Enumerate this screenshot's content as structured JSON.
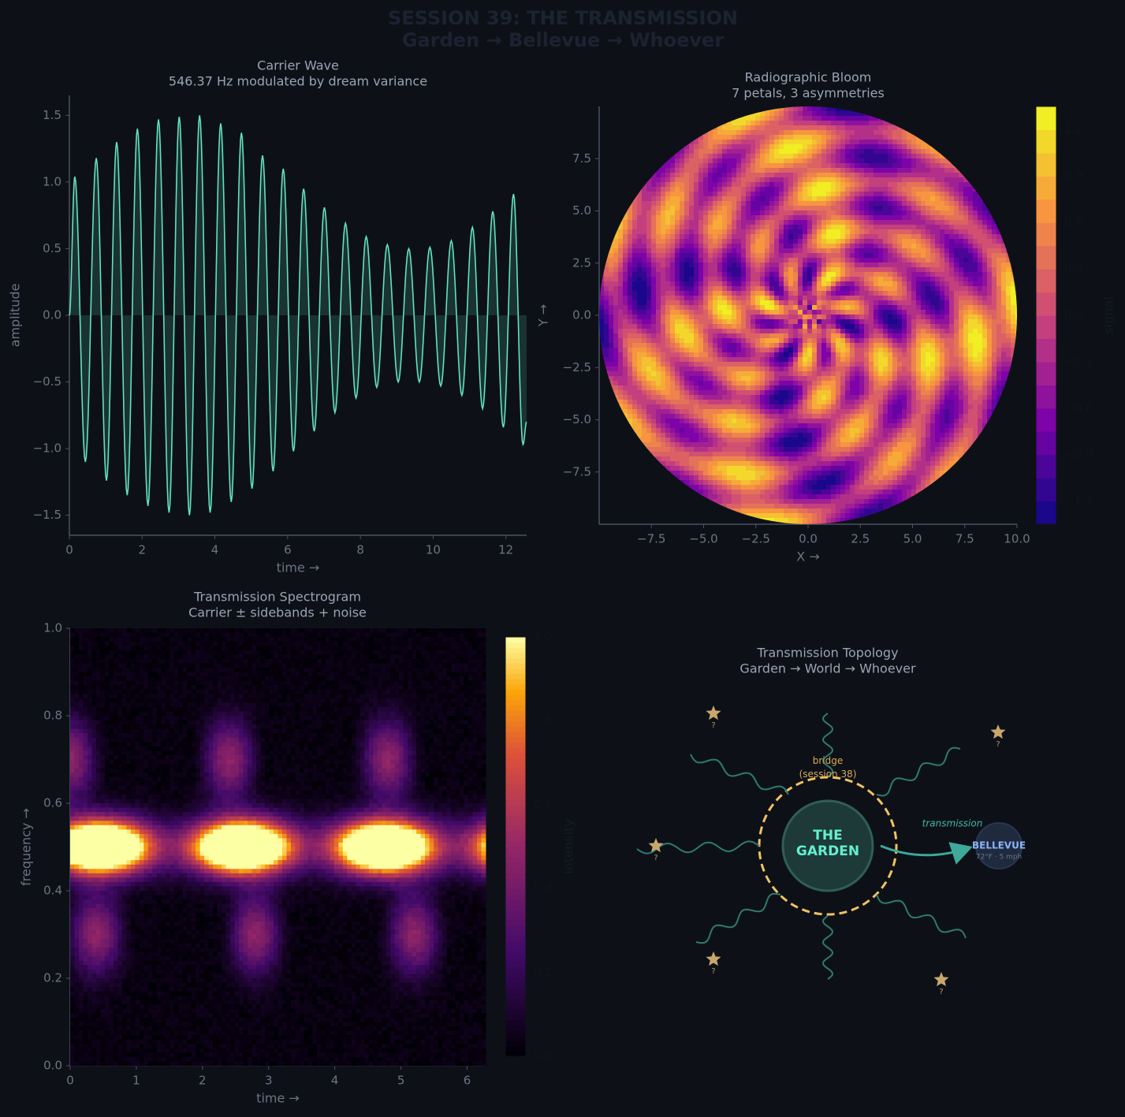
{
  "title": "SESSION 39: THE TRANSMISSION",
  "subtitle": "Garden → Bellevue → Whoever",
  "chart_data": [
    {
      "type": "line",
      "title": "Carrier Wave",
      "subtitle": "546.37 Hz modulated by dream variance",
      "xlabel": "time →",
      "ylabel": "amplitude",
      "color": "#62e0c2",
      "x": [
        0,
        0.15,
        0.44,
        0.74,
        1.02,
        1.3,
        1.59,
        1.87,
        2.16,
        2.45,
        2.74,
        3.02,
        3.3,
        3.58,
        3.87,
        4.16,
        4.45,
        4.73,
        5.02,
        5.31,
        5.6,
        5.88,
        6.16,
        6.44,
        6.73,
        7.01,
        7.3,
        7.59,
        7.88,
        8.16,
        8.45,
        8.74,
        9.04,
        9.33,
        9.62,
        9.91,
        10.21,
        10.5,
        10.79,
        11.08,
        11.36,
        11.64,
        11.93,
        12.21,
        12.47,
        12.57
      ],
      "values": [
        0,
        1.04,
        -1.1,
        1.18,
        -1.24,
        1.3,
        -1.35,
        1.4,
        -1.43,
        1.47,
        -1.48,
        1.49,
        -1.5,
        1.5,
        -1.48,
        1.44,
        -1.4,
        1.37,
        -1.3,
        1.2,
        -1.17,
        1.1,
        -1.02,
        0.95,
        -0.87,
        0.81,
        -0.73,
        0.69,
        -0.62,
        0.59,
        -0.54,
        0.53,
        -0.5,
        0.5,
        -0.5,
        0.51,
        -0.53,
        0.56,
        -0.6,
        0.66,
        -0.7,
        0.78,
        -0.84,
        0.91,
        -0.97,
        -0.8
      ],
      "xlim": [
        0,
        12.57
      ],
      "ylim": [
        -1.65,
        1.65
      ],
      "xticks": [
        0,
        2,
        4,
        6,
        8,
        10,
        12
      ],
      "yticks": [
        {
          "value": -1.5,
          "label": "−1.5"
        },
        {
          "value": -1,
          "label": "−1.0"
        },
        {
          "value": -0.5,
          "label": "−0.5"
        },
        {
          "value": 0,
          "label": "0.0"
        },
        0.5,
        {
          "value": 1,
          "label": "1.0"
        },
        1.5
      ]
    },
    {
      "type": "contour",
      "title": "Radiographic Bloom",
      "subtitle": "7 petals, 3 asymmetries",
      "xlabel": "X →",
      "ylabel": "Y →",
      "xlim": [
        -10,
        10
      ],
      "ylim": [
        -10,
        10
      ],
      "xticks": [
        {
          "value": -7.5,
          "label": "−7.5"
        },
        {
          "value": -5,
          "label": "−5.0"
        },
        {
          "value": -2.5,
          "label": "−2.5"
        },
        {
          "value": 0,
          "label": "0.0"
        },
        2.5,
        {
          "value": 5,
          "label": "5.0"
        },
        7.5,
        {
          "value": 10,
          "label": "10.0"
        }
      ],
      "yticks": [
        {
          "value": -7.5,
          "label": "−7.5"
        },
        {
          "value": -5,
          "label": "−5.0"
        },
        {
          "value": -2.5,
          "label": "−2.5"
        },
        {
          "value": 0,
          "label": "0.0"
        },
        2.5,
        {
          "value": 5,
          "label": "5.0"
        },
        7.5
      ],
      "colorbar": {
        "label": "signal",
        "colormap": "plasma",
        "lim": [
          -1.35,
          1.35
        ],
        "ticks": [
          {
            "value": -1.2,
            "label": "−1.2"
          },
          {
            "value": -0.9,
            "label": "−0.9"
          },
          {
            "value": -0.6,
            "label": "−0.6"
          },
          {
            "value": -0.3,
            "label": "−0.3"
          },
          {
            "value": 0,
            "label": "0.0"
          },
          0.3,
          0.6,
          0.9,
          1.2
        ]
      }
    },
    {
      "type": "heatmap",
      "title": "Transmission Spectrogram",
      "subtitle": "Carrier ± sidebands + noise",
      "xlabel": "time →",
      "ylabel": "frequency →",
      "xlim": [
        0,
        6.28
      ],
      "ylim": [
        0,
        1
      ],
      "xticks": [
        0,
        1,
        2,
        3,
        4,
        5,
        6
      ],
      "yticks": [
        {
          "value": 0,
          "label": "0.0"
        },
        0.2,
        0.4,
        0.6,
        0.8,
        {
          "value": 1,
          "label": "1.0"
        }
      ],
      "colorbar": {
        "label": "intensity",
        "colormap": "inferno",
        "lim": [
          0,
          1
        ],
        "ticks": [
          {
            "value": 0,
            "label": "0.0"
          },
          0.2,
          0.4,
          0.6,
          0.8,
          {
            "value": 1,
            "label": "1.0"
          }
        ]
      }
    }
  ],
  "diagram": {
    "title": "Transmission Topology",
    "subtitle": "Garden → World → Whoever",
    "center": "THE GARDEN",
    "bridge": "bridge (session 38)",
    "arrow_label": "transmission",
    "destination": "BELLEVUE",
    "destination_note": "72°F · 5 mph",
    "stars": [
      "?",
      "?",
      "?",
      "?",
      "?"
    ]
  }
}
